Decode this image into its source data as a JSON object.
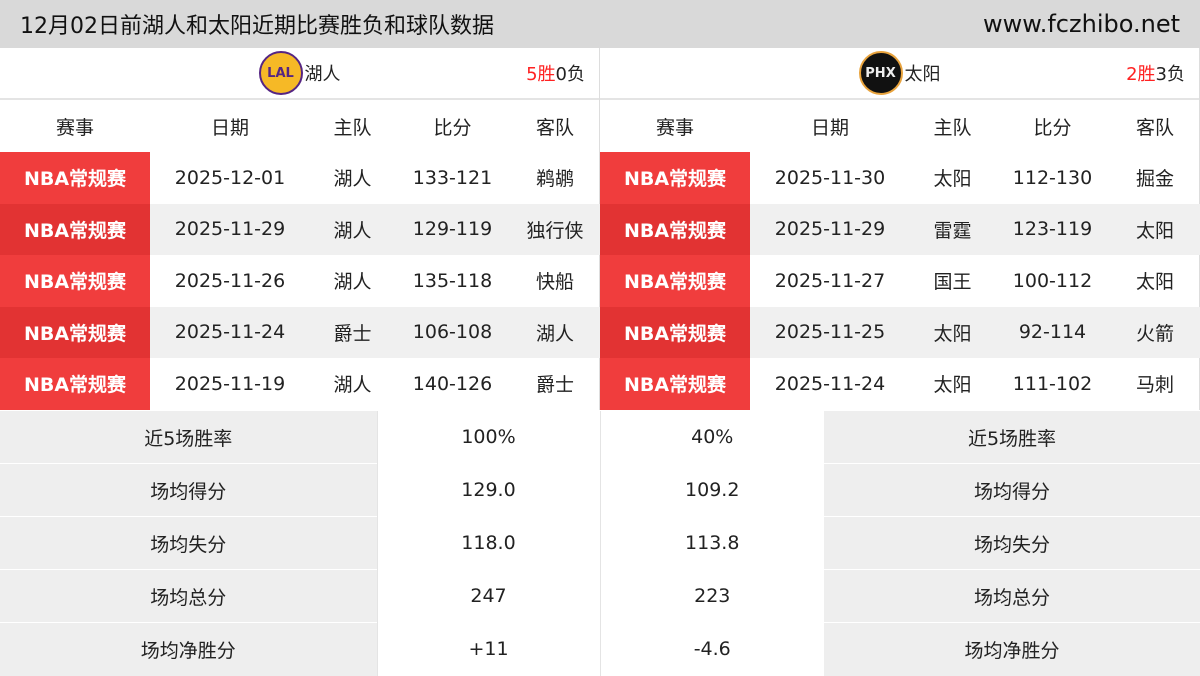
{
  "title": "12月02日前湖人和太阳近期比赛胜负和球队数据",
  "site": "www.fczhibo.net",
  "headers": [
    "赛事",
    "日期",
    "主队",
    "比分",
    "客队"
  ],
  "left": {
    "logo": "LAL",
    "name": "湖人",
    "wins": "5胜",
    "losses": "0负",
    "rows": [
      [
        "NBA常规赛",
        "2025-12-01",
        "湖人",
        "133-121",
        "鹈鹕"
      ],
      [
        "NBA常规赛",
        "2025-11-29",
        "湖人",
        "129-119",
        "独行侠"
      ],
      [
        "NBA常规赛",
        "2025-11-26",
        "湖人",
        "135-118",
        "快船"
      ],
      [
        "NBA常规赛",
        "2025-11-24",
        "爵士",
        "106-108",
        "湖人"
      ],
      [
        "NBA常规赛",
        "2025-11-19",
        "湖人",
        "140-126",
        "爵士"
      ]
    ]
  },
  "right": {
    "logo": "PHX",
    "name": "太阳",
    "wins": "2胜",
    "losses": "3负",
    "rows": [
      [
        "NBA常规赛",
        "2025-11-30",
        "太阳",
        "112-130",
        "掘金"
      ],
      [
        "NBA常规赛",
        "2025-11-29",
        "雷霆",
        "123-119",
        "太阳"
      ],
      [
        "NBA常规赛",
        "2025-11-27",
        "国王",
        "100-112",
        "太阳"
      ],
      [
        "NBA常规赛",
        "2025-11-25",
        "太阳",
        "92-114",
        "火箭"
      ],
      [
        "NBA常规赛",
        "2025-11-24",
        "太阳",
        "111-102",
        "马刺"
      ]
    ]
  },
  "stats": [
    [
      "近5场胜率",
      "100%",
      "40%"
    ],
    [
      "场均得分",
      "129.0",
      "109.2"
    ],
    [
      "场均失分",
      "118.0",
      "113.8"
    ],
    [
      "场均总分",
      "247",
      "223"
    ],
    [
      "场均净胜分",
      "+11",
      "-4.6"
    ]
  ]
}
